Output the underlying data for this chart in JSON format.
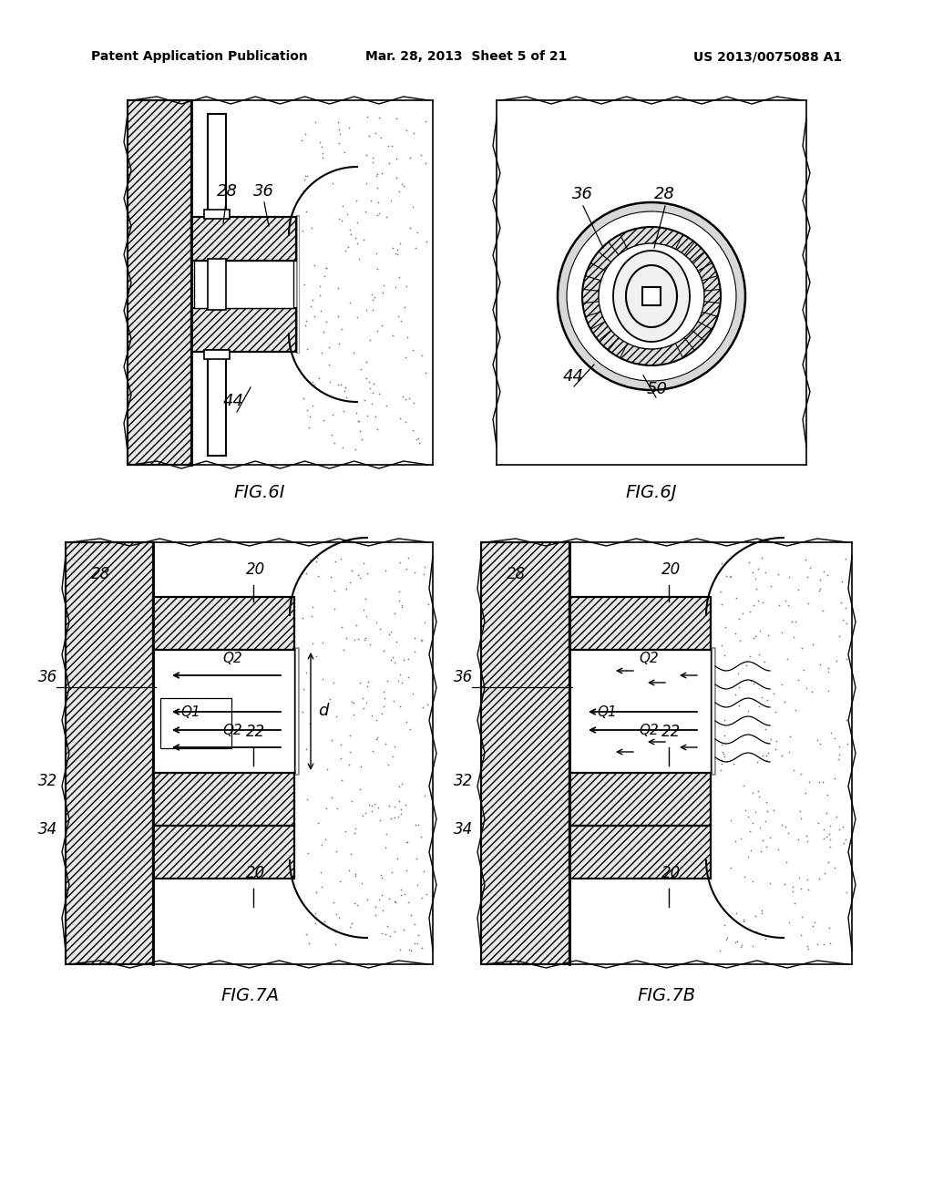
{
  "background_color": "#ffffff",
  "header_left": "Patent Application Publication",
  "header_center": "Mar. 28, 2013  Sheet 5 of 21",
  "header_right": "US 2013/0075088 A1",
  "fig6i_label": "FIG.6I",
  "fig6j_label": "FIG.6J",
  "fig7a_label": "FIG.7A",
  "fig7b_label": "FIG.7B",
  "line_color": "#000000",
  "text_color": "#000000"
}
